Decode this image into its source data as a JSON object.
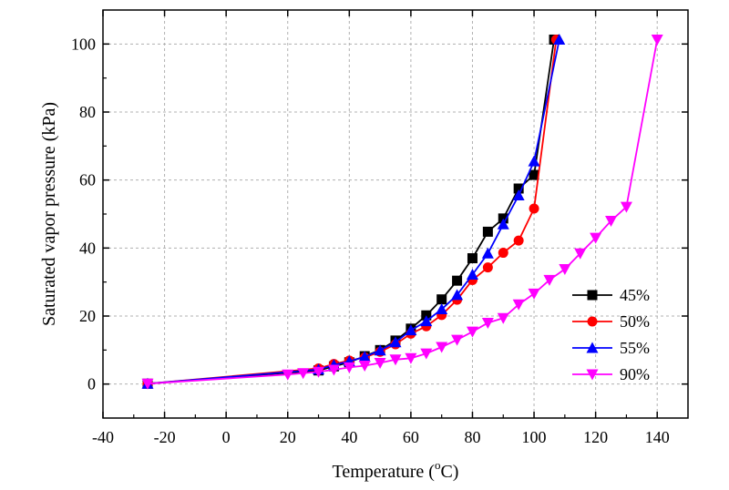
{
  "chart_data": {
    "type": "line",
    "xlabel": "Temperature (",
    "xlabel_sup": "o",
    "xlabel_tail": "C)",
    "ylabel": "Saturated vapor pressure (kPa)",
    "xlim": [
      -40,
      150
    ],
    "ylim": [
      -10,
      110
    ],
    "x_ticks": [
      -40,
      -20,
      0,
      20,
      40,
      60,
      80,
      100,
      120,
      140
    ],
    "y_ticks": [
      0,
      20,
      40,
      60,
      80,
      100
    ],
    "grid": "dashed, on",
    "legend_position": "right, lower-middle",
    "series": [
      {
        "name": "45%",
        "color": "#000000",
        "marker": "square",
        "points": [
          [
            -25.5,
            0.1
          ],
          [
            30,
            4.0
          ],
          [
            35,
            5.2
          ],
          [
            40,
            6.4
          ],
          [
            45,
            8.2
          ],
          [
            50,
            10.0
          ],
          [
            55,
            12.8
          ],
          [
            60,
            16.3
          ],
          [
            65,
            20.2
          ],
          [
            70,
            24.9
          ],
          [
            75,
            30.4
          ],
          [
            80,
            37.0
          ],
          [
            85,
            44.8
          ],
          [
            90,
            48.7
          ],
          [
            95,
            57.5
          ],
          [
            100,
            61.5
          ],
          [
            106.5,
            101.3
          ]
        ]
      },
      {
        "name": "50%",
        "color": "#ff0000",
        "marker": "circle",
        "points": [
          [
            -25.5,
            0.1
          ],
          [
            30,
            4.6
          ],
          [
            35,
            5.9
          ],
          [
            40,
            6.9
          ],
          [
            45,
            7.8
          ],
          [
            50,
            9.5
          ],
          [
            55,
            11.7
          ],
          [
            60,
            14.8
          ],
          [
            65,
            17.0
          ],
          [
            70,
            20.3
          ],
          [
            75,
            24.8
          ],
          [
            80,
            30.6
          ],
          [
            85,
            34.3
          ],
          [
            90,
            38.6
          ],
          [
            95,
            42.2
          ],
          [
            100,
            51.6
          ],
          [
            107.2,
            101.3
          ]
        ]
      },
      {
        "name": "55%",
        "color": "#0000ff",
        "marker": "triangle-up",
        "points": [
          [
            -25.5,
            0.1
          ],
          [
            30,
            4.3
          ],
          [
            35,
            5.6
          ],
          [
            40,
            6.7
          ],
          [
            45,
            8.0
          ],
          [
            50,
            9.9
          ],
          [
            55,
            12.3
          ],
          [
            60,
            15.8
          ],
          [
            65,
            18.5
          ],
          [
            70,
            22.0
          ],
          [
            75,
            26.2
          ],
          [
            80,
            32.2
          ],
          [
            85,
            38.4
          ],
          [
            90,
            47.0
          ],
          [
            95,
            55.5
          ],
          [
            100,
            65.5
          ],
          [
            108.2,
            101.3
          ]
        ]
      },
      {
        "name": "90%",
        "color": "#ff00ff",
        "marker": "triangle-down",
        "points": [
          [
            -25.5,
            0.1
          ],
          [
            20,
            2.8
          ],
          [
            25,
            3.2
          ],
          [
            30,
            3.6
          ],
          [
            35,
            4.2
          ],
          [
            40,
            4.9
          ],
          [
            45,
            5.4
          ],
          [
            50,
            6.2
          ],
          [
            55,
            7.2
          ],
          [
            60,
            7.6
          ],
          [
            65,
            9.0
          ],
          [
            70,
            10.9
          ],
          [
            75,
            13.0
          ],
          [
            80,
            15.4
          ],
          [
            85,
            18.0
          ],
          [
            90,
            19.4
          ],
          [
            95,
            23.4
          ],
          [
            100,
            26.6
          ],
          [
            105,
            30.6
          ],
          [
            110,
            33.8
          ],
          [
            115,
            38.4
          ],
          [
            120,
            43.0
          ],
          [
            125,
            48.0
          ],
          [
            130,
            52.1
          ],
          [
            140,
            101.3
          ]
        ]
      }
    ]
  }
}
